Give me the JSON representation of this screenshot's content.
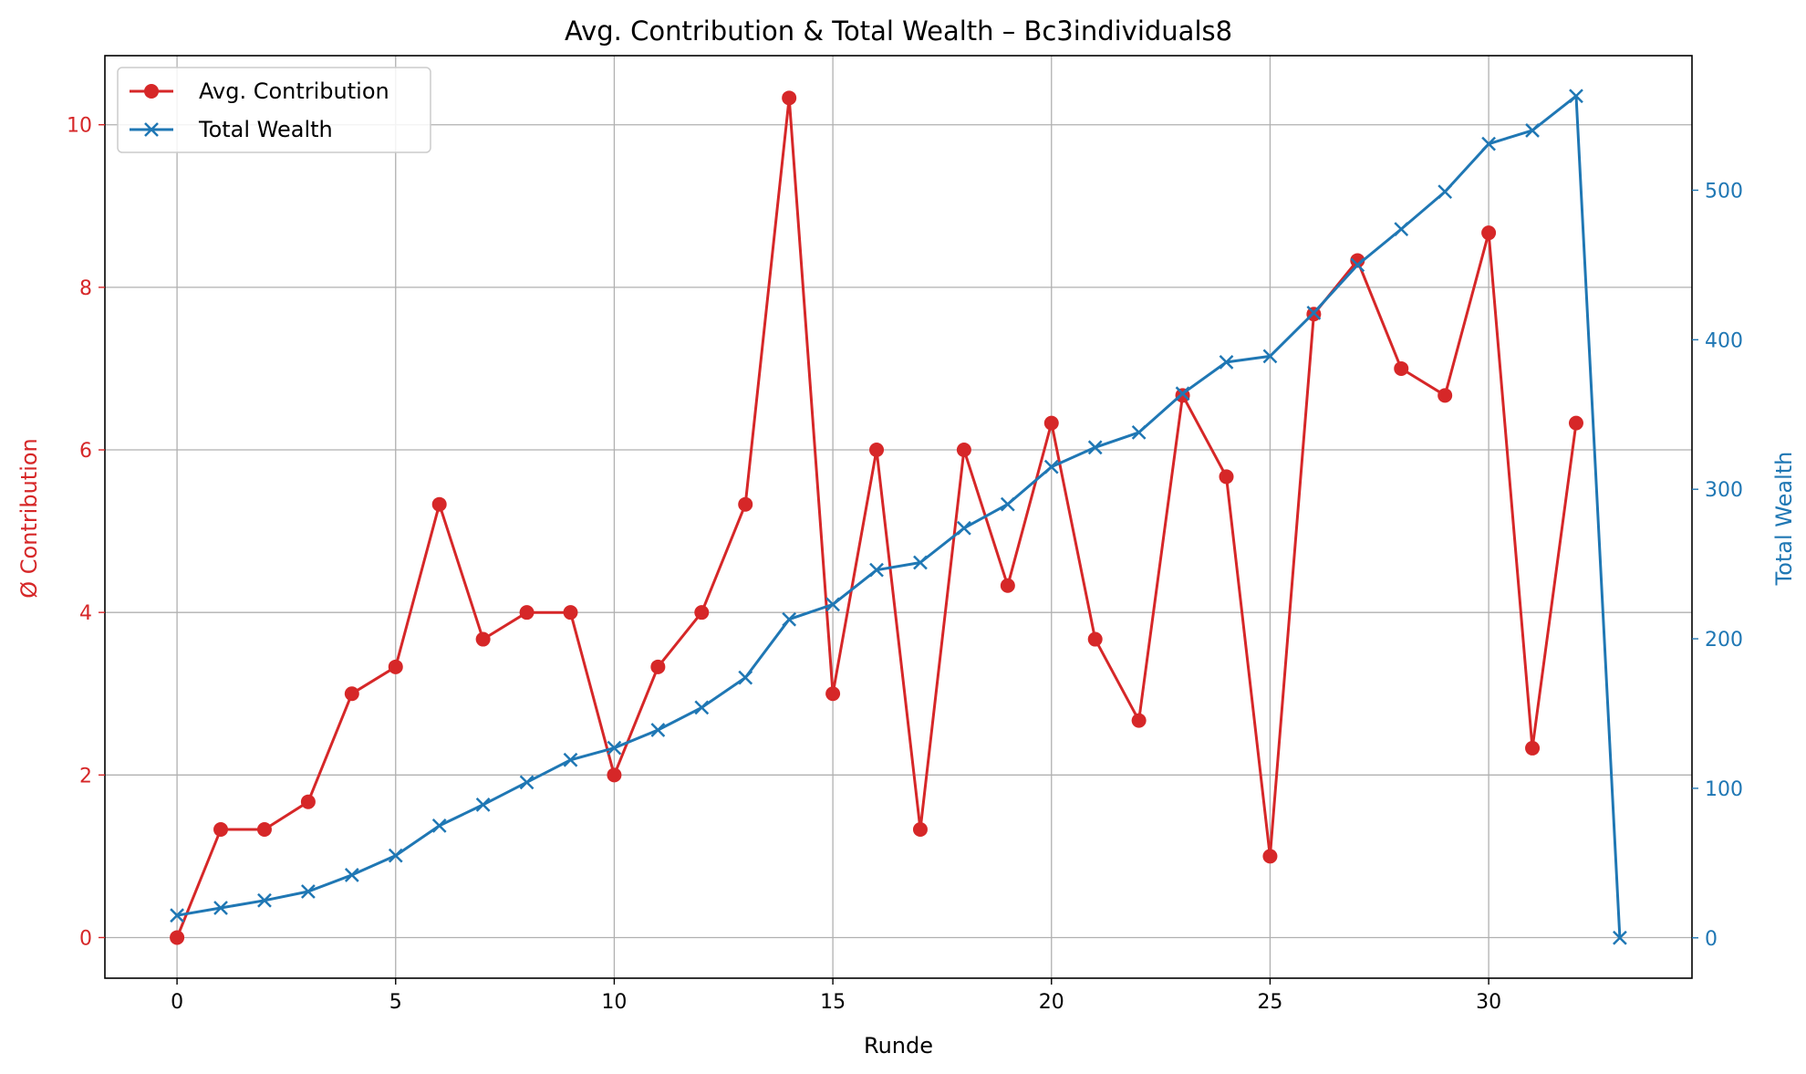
{
  "chart_data": {
    "type": "line",
    "title": "Avg. Contribution & Total Wealth – Bc3individuals8",
    "xlabel": "Runde",
    "ylabel_left": "Ø Contribution",
    "ylabel_right": "Total Wealth",
    "xlim": [
      -1.65,
      34.65
    ],
    "ylim_left": [
      -0.5,
      10.85
    ],
    "ylim_right": [
      -27,
      590
    ],
    "x_ticks": [
      0,
      5,
      10,
      15,
      20,
      25,
      30
    ],
    "y_ticks_left": [
      0,
      2,
      4,
      6,
      8,
      10
    ],
    "y_ticks_right": [
      0,
      100,
      200,
      300,
      400,
      500
    ],
    "grid": true,
    "legend_position": "top-left",
    "series": [
      {
        "name": "Avg. Contribution",
        "axis": "left",
        "marker": "circle",
        "color": "#d62728",
        "x": [
          0,
          1,
          2,
          3,
          4,
          5,
          6,
          7,
          8,
          9,
          10,
          11,
          12,
          13,
          14,
          15,
          16,
          17,
          18,
          19,
          20,
          21,
          22,
          23,
          24,
          25,
          26,
          27,
          28,
          29,
          30,
          31,
          32
        ],
        "values": [
          0,
          1.33,
          1.33,
          1.67,
          3,
          3.33,
          5.33,
          3.67,
          4,
          4,
          2,
          3.33,
          4,
          5.33,
          10.33,
          3,
          6,
          1.33,
          6,
          4.33,
          6.33,
          3.67,
          2.67,
          6.67,
          5.67,
          1,
          7.67,
          8.33,
          7,
          6.67,
          8.67,
          2.33,
          6.33
        ]
      },
      {
        "name": "Total Wealth",
        "axis": "right",
        "marker": "x",
        "color": "#1f77b4",
        "x": [
          0,
          1,
          2,
          3,
          4,
          5,
          6,
          7,
          8,
          9,
          10,
          11,
          12,
          13,
          14,
          15,
          16,
          17,
          18,
          19,
          20,
          21,
          22,
          23,
          24,
          25,
          26,
          27,
          28,
          29,
          30,
          31,
          32,
          33
        ],
        "values": [
          15,
          20,
          25,
          31,
          42,
          55,
          75,
          89,
          104,
          119,
          127,
          139,
          154,
          174,
          213,
          223,
          246,
          251,
          274,
          290,
          315,
          328,
          338,
          364,
          385,
          389,
          418,
          450,
          474,
          499,
          531,
          540,
          563,
          0
        ]
      }
    ]
  }
}
